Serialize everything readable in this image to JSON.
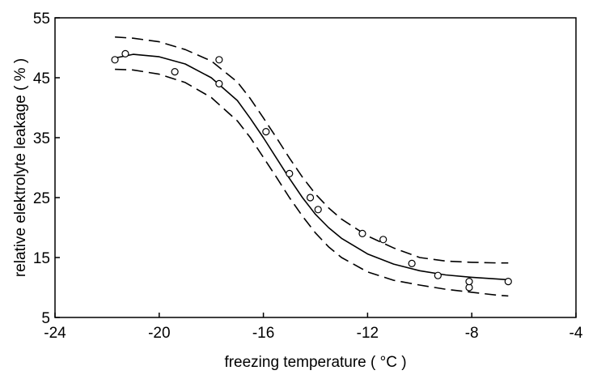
{
  "chart_data": {
    "type": "scatter",
    "title": "",
    "xlabel": "freezing temperature ( °C )",
    "ylabel": "relative elektrolyte leakage ( % )",
    "xlim": [
      -24,
      -4
    ],
    "ylim": [
      5,
      55
    ],
    "x_ticks": [
      -24,
      -20,
      -16,
      -12,
      -8,
      -4
    ],
    "y_ticks": [
      5,
      15,
      25,
      35,
      45,
      55
    ],
    "x_tick_labels": [
      "-24",
      "-20",
      "-16",
      "-12",
      "-8",
      "-4"
    ],
    "y_tick_labels": [
      "5",
      "15",
      "25",
      "35",
      "45",
      "55"
    ],
    "grid": false,
    "series": [
      {
        "type": "scatter",
        "marker": "open-circle",
        "x": [
          -21.7,
          -21.3,
          -19.4,
          -17.7,
          -17.7,
          -15.9,
          -15.0,
          -14.2,
          -13.9,
          -12.2,
          -11.4,
          -10.3,
          -9.3,
          -8.1,
          -8.1,
          -6.6
        ],
        "y": [
          48,
          49,
          46,
          48,
          44,
          36,
          29,
          25,
          23,
          19,
          18,
          14,
          12,
          10,
          11,
          11
        ]
      },
      {
        "type": "line",
        "style": "solid",
        "x": [
          -21.7,
          -21.0,
          -20.0,
          -19.0,
          -18.0,
          -17.0,
          -16.5,
          -16.0,
          -15.5,
          -15.0,
          -14.5,
          -14.0,
          -13.5,
          -13.0,
          -12.0,
          -11.0,
          -10.0,
          -9.0,
          -8.0,
          -7.0,
          -6.6
        ],
        "y": [
          48.3,
          48.9,
          48.5,
          47.3,
          45.0,
          41.2,
          38.2,
          35.0,
          31.6,
          28.2,
          25.0,
          22.2,
          20.0,
          18.2,
          15.6,
          13.9,
          12.8,
          12.1,
          11.7,
          11.4,
          11.3
        ]
      },
      {
        "type": "line",
        "style": "dashed",
        "x": [
          -21.7,
          -21.0,
          -20.0,
          -19.0,
          -18.0,
          -17.0,
          -16.5,
          -16.0,
          -15.5,
          -15.0,
          -14.5,
          -14.0,
          -13.5,
          -13.0,
          -12.0,
          -11.0,
          -10.0,
          -9.0,
          -8.0,
          -7.0,
          -6.6
        ],
        "y": [
          51.8,
          51.6,
          51.0,
          49.7,
          47.8,
          44.3,
          41.5,
          38.3,
          35.0,
          31.6,
          28.4,
          25.6,
          23.3,
          21.4,
          18.6,
          16.6,
          15.0,
          14.4,
          14.2,
          14.1,
          14.1
        ]
      },
      {
        "type": "line",
        "style": "dashed",
        "x": [
          -21.7,
          -21.0,
          -20.0,
          -19.0,
          -18.0,
          -17.0,
          -16.5,
          -16.0,
          -15.5,
          -15.0,
          -14.5,
          -14.0,
          -13.5,
          -13.0,
          -12.0,
          -11.0,
          -10.0,
          -9.0,
          -8.0,
          -7.0,
          -6.6
        ],
        "y": [
          46.4,
          46.3,
          45.6,
          44.2,
          41.7,
          37.8,
          35.0,
          31.7,
          28.4,
          25.0,
          21.9,
          19.1,
          16.8,
          15.0,
          12.6,
          11.2,
          10.4,
          9.7,
          9.2,
          8.7,
          8.6
        ]
      }
    ]
  }
}
